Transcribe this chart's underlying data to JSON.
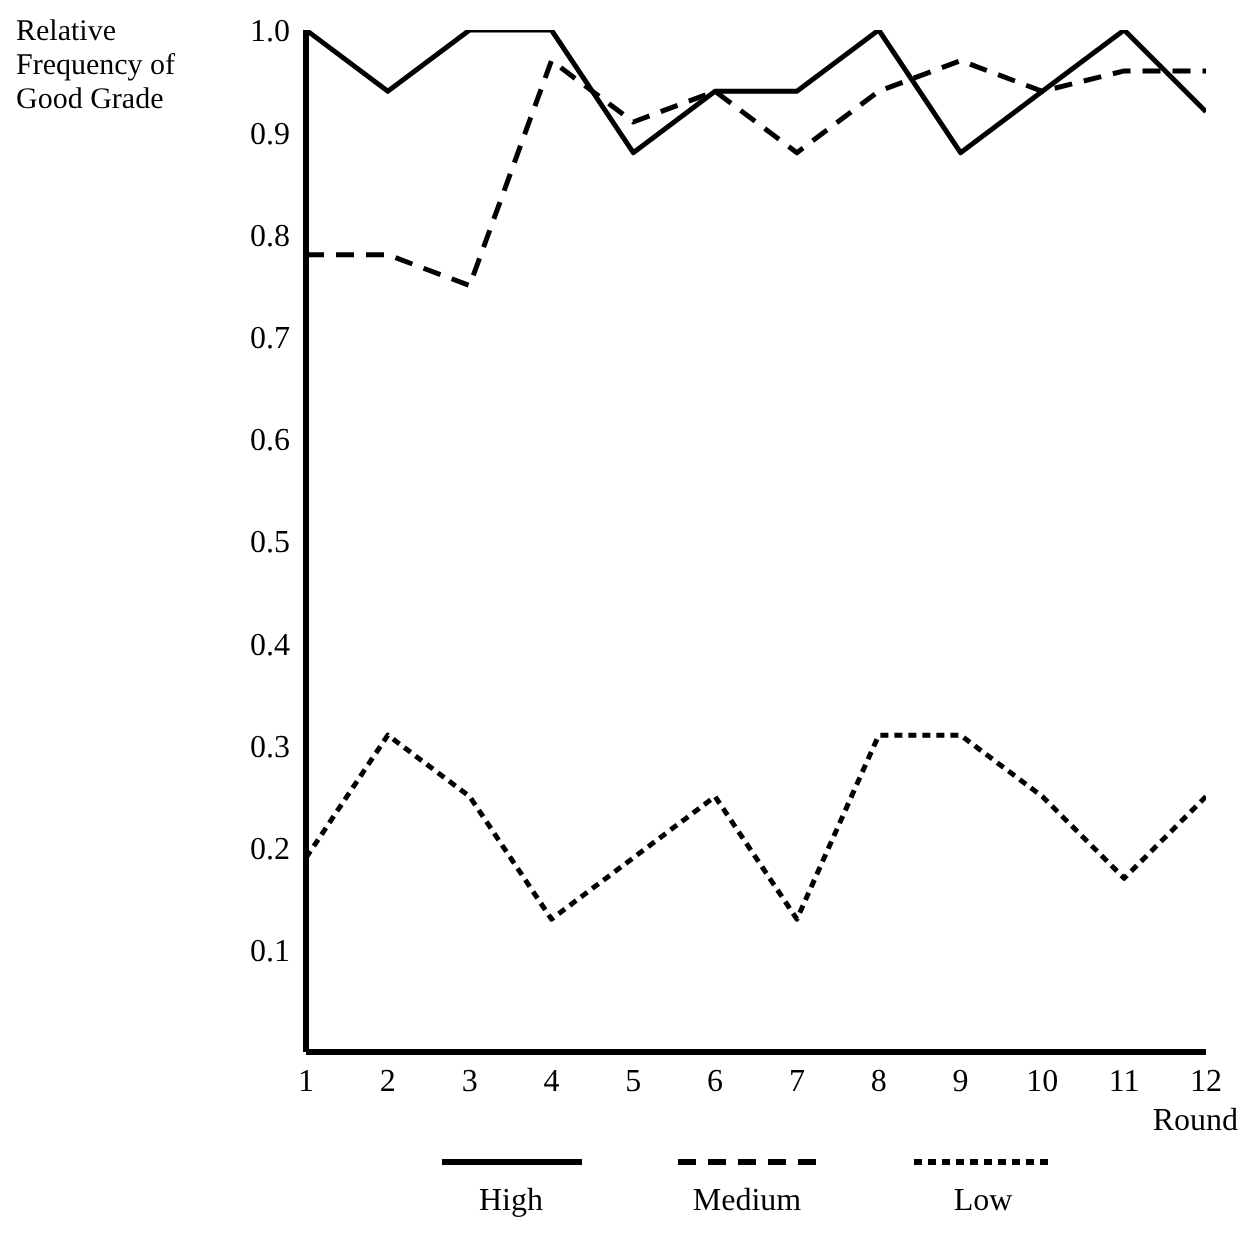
{
  "chart_data": {
    "type": "line",
    "xlabel": "Round",
    "ylabel": "Relative Frequency of Good Grade",
    "x": [
      1,
      2,
      3,
      4,
      5,
      6,
      7,
      8,
      9,
      10,
      11,
      12
    ],
    "xlim": [
      1,
      12
    ],
    "xticks": [
      1,
      2,
      3,
      4,
      5,
      6,
      7,
      8,
      9,
      10,
      11,
      12
    ],
    "ylim": [
      0,
      1
    ],
    "yticks": [
      0.1,
      0.2,
      0.3,
      0.4,
      0.5,
      0.6,
      0.7,
      0.8,
      0.9,
      {
        "value": 1,
        "label": "1.0"
      }
    ],
    "grid": false,
    "legend": "bottom",
    "marker": "none",
    "series": [
      {
        "name": "High",
        "color": "#000000",
        "line_style": "solid",
        "values": [
          1,
          0.94,
          1,
          1,
          0.88,
          0.94,
          0.94,
          1,
          0.88,
          0.94,
          1,
          0.92
        ]
      },
      {
        "name": "Medium",
        "color": "#000000",
        "line_style": "dashed",
        "values": [
          0.78,
          0.78,
          0.75,
          0.97,
          0.91,
          0.94,
          0.88,
          0.94,
          0.97,
          0.94,
          0.96,
          0.96
        ]
      },
      {
        "name": "Low",
        "color": "#000000",
        "line_style": "dotted",
        "values": [
          0.19,
          0.31,
          0.25,
          0.13,
          0.19,
          0.25,
          0.13,
          0.31,
          0.31,
          0.25,
          0.17,
          0.25
        ]
      }
    ]
  }
}
